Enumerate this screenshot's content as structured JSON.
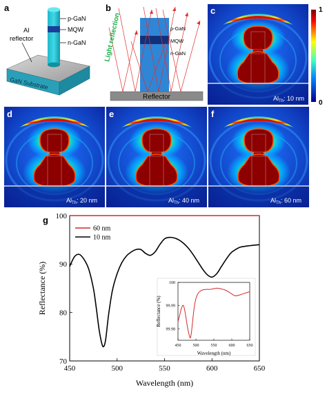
{
  "panels": {
    "a": {
      "letter": "a",
      "labels": [
        "p-GaN",
        "MQW",
        "n-GaN"
      ],
      "reflector": [
        "Al",
        "reflector"
      ],
      "substrate": "GaN Substrate"
    },
    "b": {
      "letter": "b",
      "light": "Light reflection",
      "labels": [
        "p-GaN",
        "MQW",
        "n-GaN"
      ],
      "reflector": "Reflector"
    },
    "c": {
      "letter": "c",
      "al_label": "Al",
      "al_sub": "Th",
      "thickness": ": 10 nm"
    },
    "d": {
      "letter": "d",
      "al_label": "Al",
      "al_sub": "Th",
      "thickness": ": 20 nm"
    },
    "e": {
      "letter": "e",
      "al_label": "Al",
      "al_sub": "Th",
      "thickness": ": 40 nm"
    },
    "f": {
      "letter": "f",
      "al_label": "Al",
      "al_sub": "Th",
      "thickness": ": 60 nm"
    },
    "g": {
      "letter": "g"
    }
  },
  "colorbar": {
    "max": "1",
    "min": "0"
  },
  "chart_data": [
    {
      "type": "line",
      "panel": "g",
      "xlabel": "Wavelength (nm)",
      "ylabel": "Reflectance (%)",
      "xlim": [
        450,
        650
      ],
      "ylim": [
        70,
        100
      ],
      "xticks": [
        450,
        500,
        550,
        600,
        650
      ],
      "yticks": [
        70,
        80,
        90,
        100
      ],
      "legend": "top-left",
      "series": [
        {
          "name": "60 nm",
          "color": "#d62728",
          "x": [
            450,
            650
          ],
          "y": [
            100,
            100
          ]
        },
        {
          "name": "10 nm",
          "color": "#000000",
          "x": [
            450,
            455,
            460,
            465,
            470,
            475,
            478,
            481,
            484,
            486,
            488,
            491,
            495,
            500,
            505,
            510,
            515,
            520,
            525,
            530,
            535,
            540,
            545,
            550,
            555,
            560,
            565,
            570,
            575,
            580,
            585,
            590,
            595,
            600,
            605,
            610,
            615,
            620,
            625,
            630,
            640,
            650
          ],
          "y": [
            89.5,
            91.5,
            92,
            91,
            89,
            85,
            81,
            76.5,
            73.5,
            73,
            74.5,
            79.5,
            84.5,
            88,
            90.3,
            91.7,
            92.5,
            93,
            93,
            92.2,
            91.8,
            92.5,
            94,
            95.2,
            95.5,
            95.4,
            95,
            94.3,
            93.3,
            92,
            90.5,
            89,
            87.8,
            87.3,
            88,
            89.5,
            91,
            92.3,
            93,
            93.5,
            93.8,
            94
          ]
        }
      ]
    },
    {
      "type": "line",
      "panel": "g-inset",
      "xlabel": "Wavelength (nm)",
      "ylabel": "Reflectance (%)",
      "xlim": [
        450,
        650
      ],
      "ylim": [
        99.975,
        100
      ],
      "xticks": [
        450,
        500,
        550,
        600,
        650
      ],
      "yticks": [
        99.98,
        99.99,
        100
      ],
      "series": [
        {
          "name": "60 nm",
          "color": "#d62728",
          "x": [
            450,
            455,
            460,
            465,
            470,
            475,
            480,
            484,
            486,
            488,
            492,
            496,
            500,
            505,
            510,
            515,
            520,
            530,
            540,
            550,
            560,
            570,
            580,
            590,
            600,
            605,
            610,
            620,
            630,
            640,
            650
          ],
          "y": [
            99.983,
            99.986,
            99.989,
            99.99,
            99.987,
            99.982,
            99.978,
            99.976,
            99.977,
            99.979,
            99.985,
            99.99,
            99.993,
            99.995,
            99.996,
            99.9965,
            99.9968,
            99.997,
            99.997,
            99.9973,
            99.9975,
            99.9972,
            99.9968,
            99.996,
            99.995,
            99.9945,
            99.9942,
            99.9945,
            99.995,
            99.9955,
            99.996
          ]
        }
      ]
    }
  ]
}
